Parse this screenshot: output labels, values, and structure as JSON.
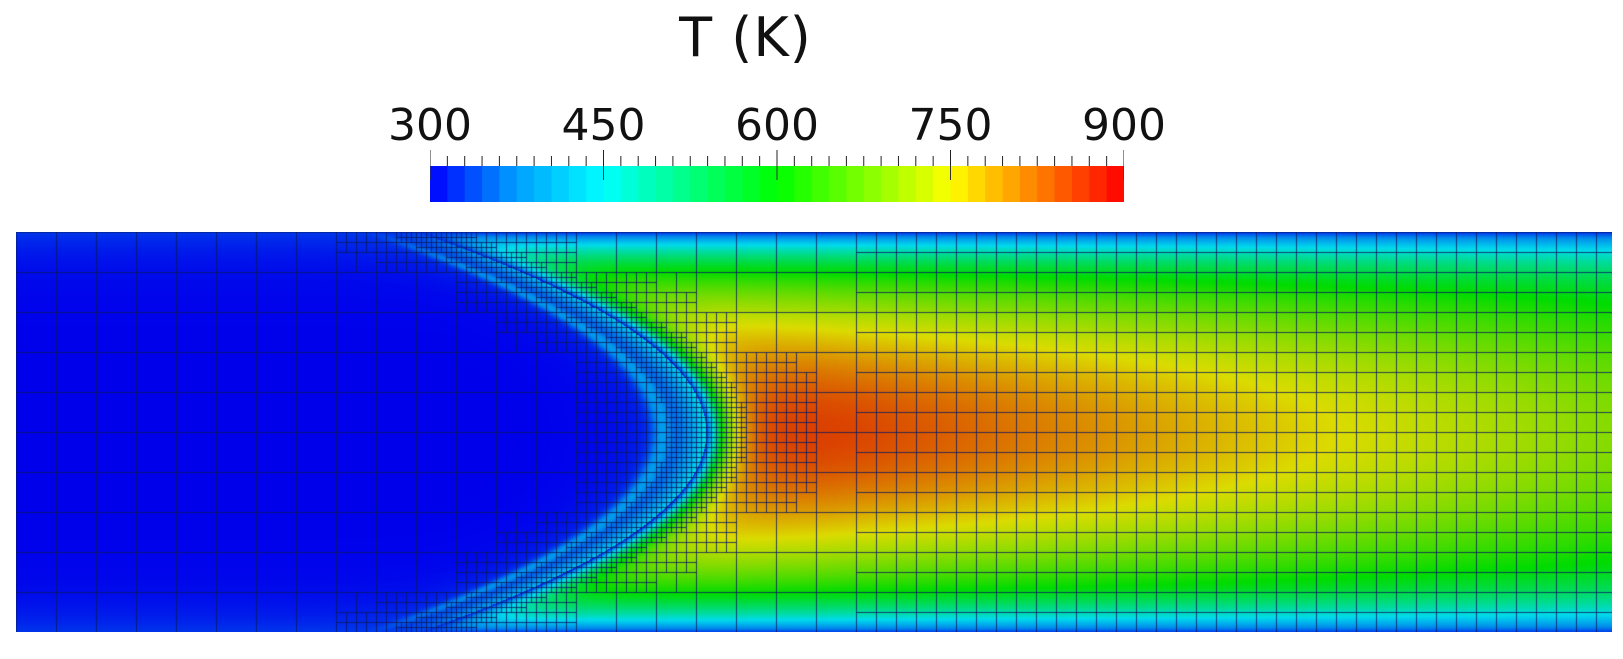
{
  "title": "T (K)",
  "colorbar": {
    "min": 300,
    "max": 900,
    "tick_labels": [
      "300",
      "450",
      "600",
      "750",
      "900"
    ],
    "tick_values": [
      300,
      450,
      600,
      750,
      900
    ],
    "minor_ticks": 40,
    "colormap": [
      "#0000ff",
      "#00a0ff",
      "#00ffff",
      "#00ff80",
      "#00ff00",
      "#80ff00",
      "#ffff00",
      "#ff8000",
      "#ff0000"
    ]
  },
  "field": {
    "ambient_value": 300,
    "peak_value": 880,
    "flame_tip_value": 900,
    "wall_value": 330,
    "mesh_line_color": "#0a1a60"
  }
}
